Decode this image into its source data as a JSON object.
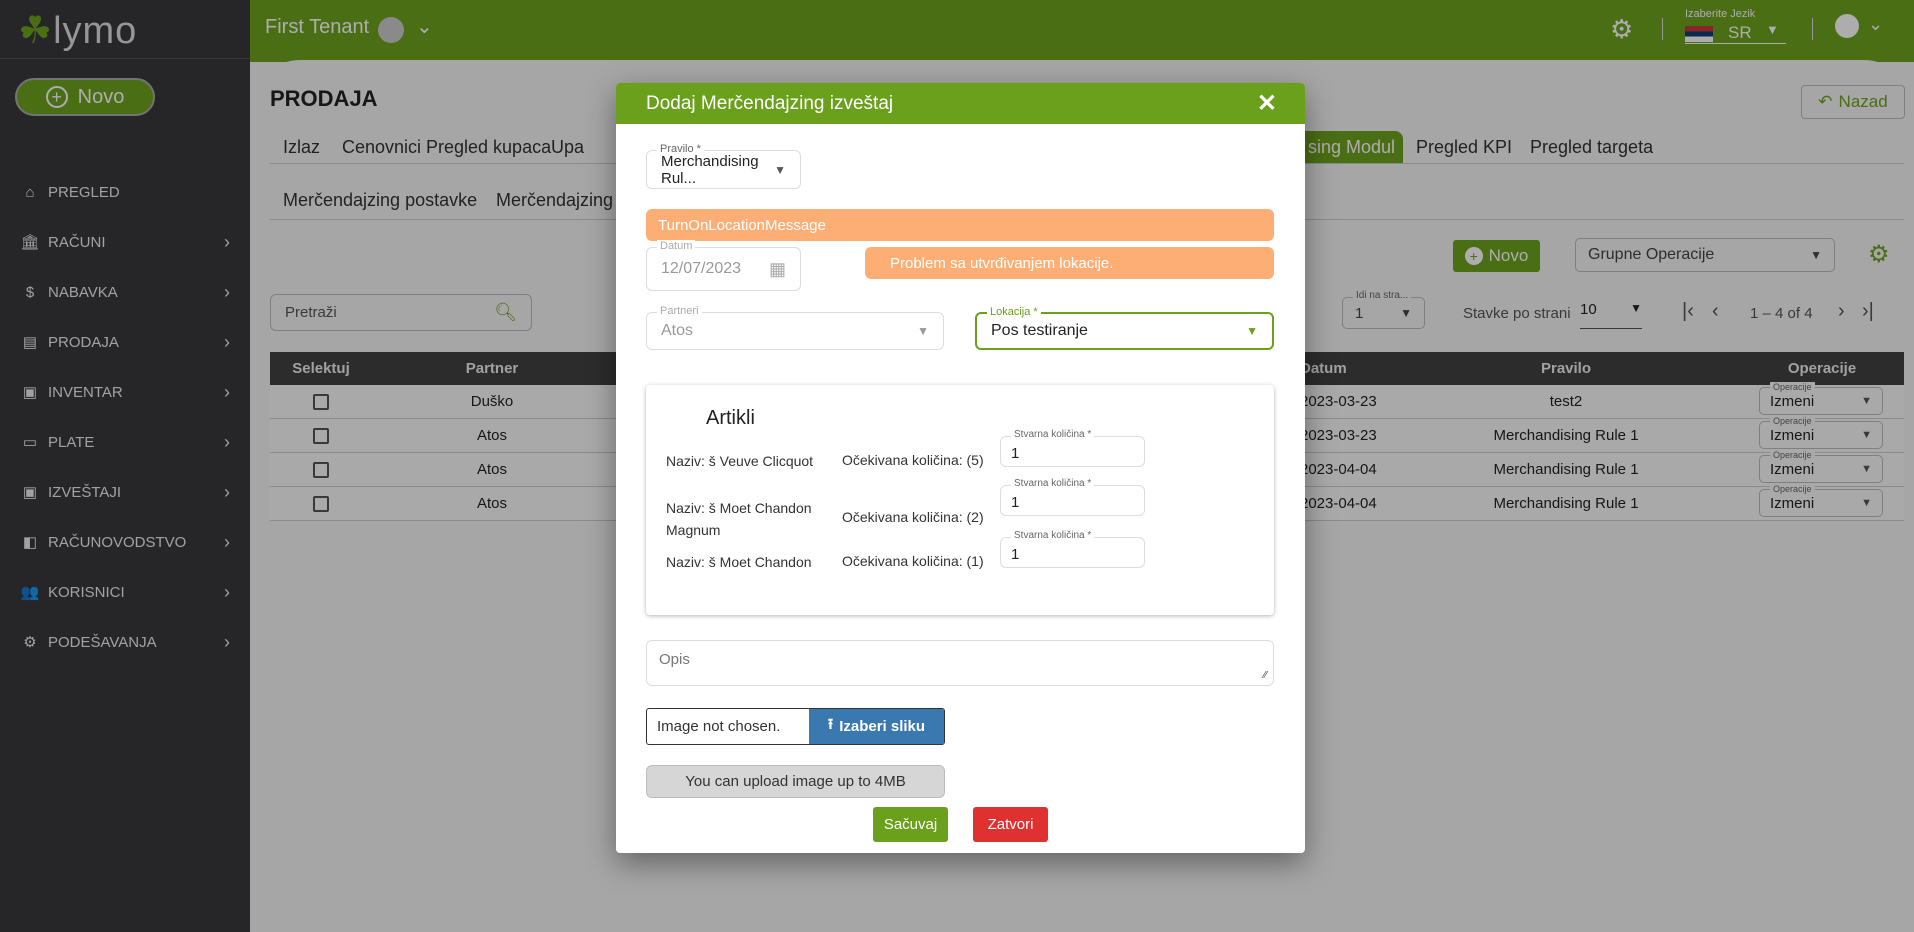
{
  "app": {
    "logo": "lymo",
    "new_button": "Novo"
  },
  "sidebar": {
    "items": [
      {
        "label": "PREGLED",
        "icon": "home-icon",
        "glyph": "⌂"
      },
      {
        "label": "RAČUNI",
        "icon": "bank-icon",
        "glyph": "🏛"
      },
      {
        "label": "NABAVKA",
        "icon": "dollar-icon",
        "glyph": "$"
      },
      {
        "label": "PRODAJA",
        "icon": "register-icon",
        "glyph": "▤"
      },
      {
        "label": "INVENTAR",
        "icon": "archive-icon",
        "glyph": "▣"
      },
      {
        "label": "PLATE",
        "icon": "card-icon",
        "glyph": "▭"
      },
      {
        "label": "IZVEŠTAJI",
        "icon": "report-icon",
        "glyph": "▣"
      },
      {
        "label": "RAČUNOVODSTVO",
        "icon": "wallet-icon",
        "glyph": "◧"
      },
      {
        "label": "KORISNICI",
        "icon": "users-icon",
        "glyph": "👥"
      },
      {
        "label": "PODEŠAVANJA",
        "icon": "gear-icon",
        "glyph": "⚙"
      }
    ]
  },
  "topbar": {
    "tenant": "First Tenant",
    "language_label": "Izaberite Jezik",
    "language": "SR"
  },
  "page": {
    "title": "PRODAJA",
    "back_button": "Nazad",
    "tabs": [
      "Izlaz",
      "Cenovnici",
      "Pregled kupaca",
      "Upa",
      "sing Modul",
      "Pregled KPI",
      "Pregled targeta"
    ],
    "subtabs": [
      "Merčendajzing postavke",
      "Merčendajzing z"
    ],
    "new_button": "Novo",
    "group_ops": "Grupne Operacije",
    "search_placeholder": "Pretraži",
    "goto_label": "Idi na stra...",
    "goto_value": "1",
    "per_page_label": "Stavke po strani",
    "per_page_value": "10",
    "range": "1 – 4 of 4"
  },
  "table": {
    "headers": {
      "select": "Selektuj",
      "partner": "Partner",
      "date": "Datum",
      "rule": "Pravilo",
      "ops": "Operacije"
    },
    "ops_label": "Operacije",
    "rows": [
      {
        "partner": "Duško",
        "date": "2023-03-23",
        "rule": "test2",
        "op": "Izmeni"
      },
      {
        "partner": "Atos",
        "date": "2023-03-23",
        "rule": "Merchandising Rule 1",
        "op": "Izmeni"
      },
      {
        "partner": "Atos",
        "date": "2023-04-04",
        "rule": "Merchandising Rule 1",
        "op": "Izmeni"
      },
      {
        "partner": "Atos",
        "date": "2023-04-04",
        "rule": "Merchandising Rule 1",
        "op": "Izmeni"
      }
    ]
  },
  "modal": {
    "title": "Dodaj Merčendajzing izveštaj",
    "rule_label": "Pravilo *",
    "rule_value": "Merchandising Rul...",
    "location_message": "TurnOnLocationMessage",
    "date_label": "Datum",
    "date_value": "12/07/2023",
    "location_error": "Problem sa utvrđivanjem lokacije.",
    "partner_label": "Partneri",
    "partner_value": "Atos",
    "location_label": "Lokacija *",
    "location_value": "Pos testiranje",
    "articles_title": "Artikli",
    "qty_label": "Stvarna količina *",
    "articles": [
      {
        "name": "Naziv: š Veuve Clicquot",
        "expected": "Očekivana količina: (5)",
        "qty": "1"
      },
      {
        "name": "Naziv: š Moet Chandon Magnum",
        "expected": "Očekivana količina: (2)",
        "qty": "1"
      },
      {
        "name": "Naziv: š Moet Chandon",
        "expected": "Očekivana količina: (1)",
        "qty": "1"
      }
    ],
    "description_placeholder": "Opis",
    "file_status": "Image not chosen.",
    "choose_image": "Izaberi sliku",
    "upload_info": "You can upload image up to 4MB",
    "save": "Sačuvaj",
    "close": "Zatvori",
    "colors": {
      "header": "#6aa01b",
      "warning": "#fdae75",
      "save": "#6aa01b",
      "close": "#e03131",
      "upload": "#3a78b0"
    }
  }
}
